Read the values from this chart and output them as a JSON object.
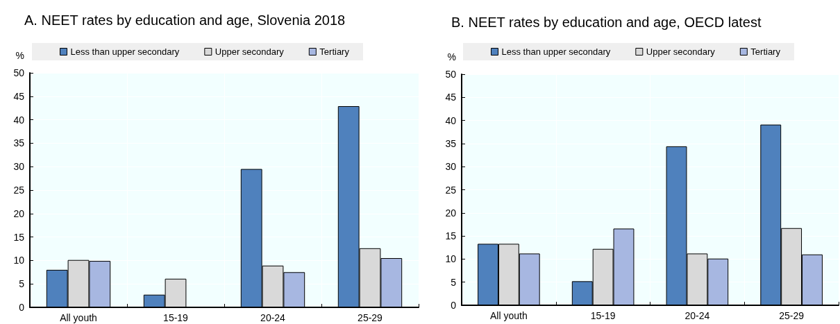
{
  "chart_data": [
    {
      "type": "bar",
      "title": "A. NEET rates by education and age, Slovenia 2018",
      "ylabel": "%",
      "categories": [
        "All youth",
        "15-19",
        "20-24",
        "25-29"
      ],
      "series": [
        {
          "name": "Less than upper secondary",
          "color": "#4f81bd",
          "values": [
            8.0,
            2.7,
            29.5,
            42.9
          ]
        },
        {
          "name": "Upper secondary",
          "color": "#d9d9d9",
          "values": [
            10.1,
            6.1,
            8.9,
            12.6
          ]
        },
        {
          "name": "Tertiary",
          "color": "#a7b7e1",
          "values": [
            9.9,
            null,
            7.5,
            10.5
          ]
        }
      ],
      "ylim": [
        0,
        50
      ],
      "yticks": [
        0,
        5,
        10,
        15,
        20,
        25,
        30,
        35,
        40,
        45,
        50
      ],
      "grid": true,
      "legend": "top"
    },
    {
      "type": "bar",
      "title": "B. NEET rates by education and age, OECD latest",
      "ylabel": "%",
      "categories": [
        "All youth",
        "15-19",
        "20-24",
        "25-29"
      ],
      "series": [
        {
          "name": "Less than upper secondary",
          "color": "#4f81bd",
          "values": [
            13.3,
            5.2,
            34.4,
            39.1
          ]
        },
        {
          "name": "Upper secondary",
          "color": "#d9d9d9",
          "values": [
            13.3,
            12.2,
            11.2,
            16.7
          ]
        },
        {
          "name": "Tertiary",
          "color": "#a7b7e1",
          "values": [
            11.2,
            16.6,
            10.1,
            11.0
          ]
        }
      ],
      "ylim": [
        0,
        50
      ],
      "yticks": [
        0,
        5,
        10,
        15,
        20,
        25,
        30,
        35,
        40,
        45,
        50
      ],
      "grid": true,
      "legend": "top"
    }
  ]
}
